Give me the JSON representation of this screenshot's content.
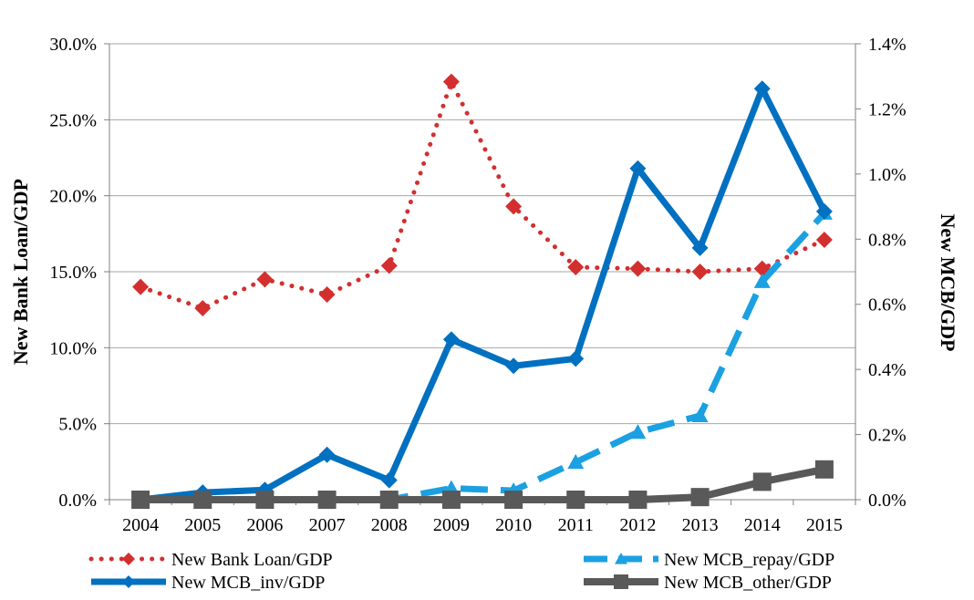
{
  "chart_data": {
    "type": "line",
    "title": "",
    "xlabel": "",
    "ylabel": "New Bank Loan/GDP",
    "y2label": "New MCB/GDP",
    "categories": [
      "2004",
      "2005",
      "2006",
      "2007",
      "2008",
      "2009",
      "2010",
      "2011",
      "2012",
      "2013",
      "2014",
      "2015"
    ],
    "ylim": [
      0,
      0.3
    ],
    "y2lim": [
      0,
      0.014
    ],
    "yticks": [
      "0.0%",
      "5.0%",
      "10.0%",
      "15.0%",
      "20.0%",
      "25.0%",
      "30.0%"
    ],
    "y2ticks": [
      "0.0%",
      "0.2%",
      "0.4%",
      "0.6%",
      "0.8%",
      "1.0%",
      "1.2%",
      "1.4%"
    ],
    "grid": true,
    "legend_position": "bottom",
    "series": [
      {
        "name": "New Bank Loan/GDP",
        "axis": "left",
        "color": "#d32f2f",
        "line_style": "dotted",
        "marker": "diamond",
        "values": [
          0.14,
          0.126,
          0.145,
          0.135,
          0.154,
          0.275,
          0.193,
          0.153,
          0.152,
          0.15,
          0.152,
          0.171
        ]
      },
      {
        "name": "New MCB_repay/GDP",
        "axis": "right",
        "color": "#1ba1e2",
        "line_style": "dashed",
        "marker": "triangle",
        "values": [
          0.0,
          0.0,
          0.0,
          0.0,
          0.0,
          0.00035,
          0.00028,
          0.00115,
          0.00207,
          0.00258,
          0.0067,
          0.0088
        ]
      },
      {
        "name": "New MCB_inv/GDP",
        "axis": "right",
        "color": "#0070c0",
        "line_style": "solid",
        "marker": "diamond",
        "values": [
          0.0,
          0.00022,
          0.0003,
          0.00138,
          0.0006,
          0.00492,
          0.00411,
          0.00433,
          0.01017,
          0.00773,
          0.01262,
          0.00885
        ]
      },
      {
        "name": "New MCB_other/GDP",
        "axis": "right",
        "color": "#595959",
        "line_style": "solid",
        "marker": "square",
        "values": [
          0.0,
          0.0,
          0.0,
          0.0,
          0.0,
          0.0,
          0.0,
          0.0,
          0.0,
          8e-05,
          0.00055,
          0.00093
        ]
      }
    ]
  }
}
